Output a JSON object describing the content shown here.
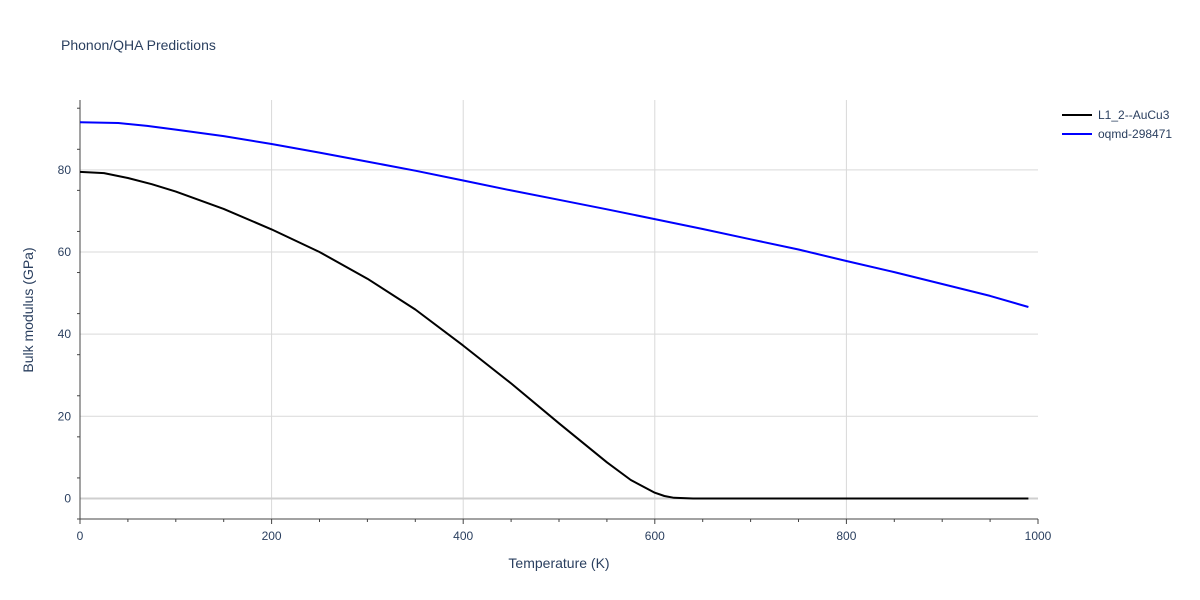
{
  "chart_data": {
    "type": "line",
    "title": "Phonon/QHA Predictions",
    "xlabel": "Temperature (K)",
    "ylabel": "Bulk modulus (GPa)",
    "xlim": [
      0,
      1000
    ],
    "ylim": [
      -5,
      97
    ],
    "xticks": [
      0,
      200,
      400,
      600,
      800,
      1000
    ],
    "yticks": [
      0,
      20,
      40,
      60,
      80
    ],
    "grid": true,
    "legend_position": "top-right",
    "series": [
      {
        "name": "L1_2--AuCu3",
        "color": "#000000",
        "x": [
          0,
          25,
          50,
          75,
          100,
          150,
          200,
          250,
          300,
          350,
          400,
          450,
          500,
          550,
          575,
          600,
          610,
          620,
          640,
          700,
          800,
          900,
          990
        ],
        "y": [
          79.5,
          79.2,
          78.0,
          76.5,
          74.7,
          70.5,
          65.5,
          60.0,
          53.5,
          46.0,
          37.2,
          28.0,
          18.3,
          8.8,
          4.5,
          1.4,
          0.6,
          0.15,
          0,
          0,
          0,
          0,
          0
        ]
      },
      {
        "name": "oqmd-298471",
        "color": "#0000ff",
        "x": [
          0,
          40,
          70,
          100,
          150,
          200,
          250,
          300,
          350,
          400,
          450,
          500,
          550,
          600,
          650,
          700,
          750,
          800,
          850,
          900,
          950,
          990
        ],
        "y": [
          91.6,
          91.4,
          90.7,
          89.8,
          88.2,
          86.3,
          84.2,
          82.0,
          79.8,
          77.4,
          75.0,
          72.7,
          70.4,
          68.0,
          65.6,
          63.1,
          60.6,
          57.8,
          55.1,
          52.2,
          49.3,
          46.6
        ]
      }
    ]
  }
}
